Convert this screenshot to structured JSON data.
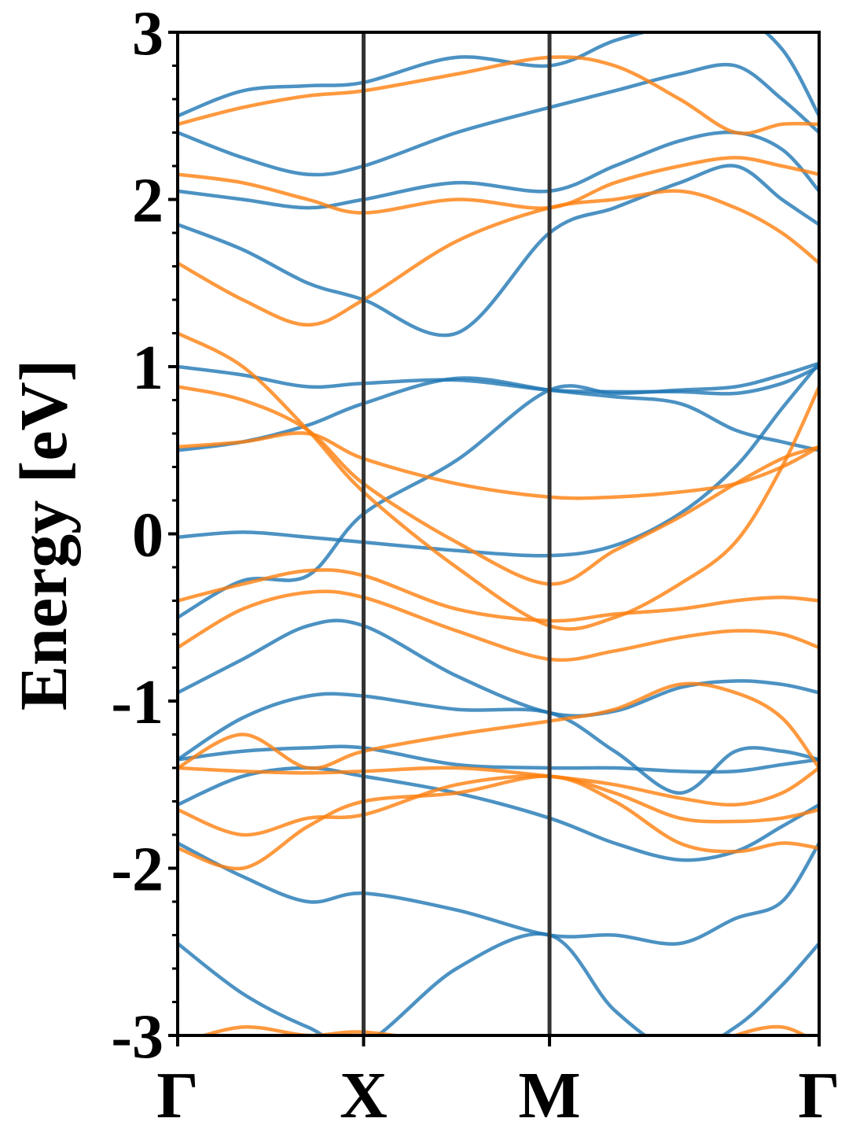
{
  "chart_data": {
    "type": "line",
    "title": "",
    "xlabel": "",
    "ylabel": "Energy [eV]",
    "ylim": [
      -3,
      3
    ],
    "xlim": [
      0,
      3.45
    ],
    "grid": false,
    "legend": "none",
    "x_ticks": [
      {
        "label": "Γ",
        "x": 0
      },
      {
        "label": "X",
        "x": 1
      },
      {
        "label": "M",
        "x": 2
      },
      {
        "label": "Γ",
        "x": 3.45
      }
    ],
    "y_ticks": [
      -3,
      -2,
      -1,
      0,
      1,
      2,
      3
    ],
    "y_tick_labels": [
      "-3",
      "-2",
      "-1",
      "0",
      "1",
      "2",
      "3"
    ],
    "colors": {
      "series_a": "#1f77b4",
      "series_b": "#ff7f0e",
      "axes": "#000000",
      "kpath_lines": "#333333"
    },
    "series": [
      {
        "color": "#1f77b4",
        "bands": [
          {
            "ids": [
              -0.02,
              0.01,
              -0.02,
              -0.05,
              -0.1,
              -0.13,
              -0.07,
              0.12,
              0.4,
              0.75,
              1.02
            ]
          },
          {
            "ids": [
              -0.5,
              -0.28,
              -0.25,
              0.12,
              0.44,
              0.86,
              0.84,
              0.86,
              0.88,
              0.95,
              1.02
            ]
          },
          {
            "ids": [
              0.5,
              0.55,
              0.65,
              0.78,
              0.93,
              0.86,
              0.82,
              0.78,
              0.62,
              0.55,
              0.5
            ]
          },
          {
            "ids": [
              1.0,
              0.95,
              0.88,
              0.9,
              0.92,
              0.86,
              0.85,
              0.85,
              0.84,
              0.9,
              1.0
            ]
          },
          {
            "ids": [
              -0.95,
              -0.75,
              -0.55,
              -0.55,
              -0.85,
              -1.07,
              -1.06,
              -0.92,
              -0.88,
              -0.9,
              -0.95
            ]
          },
          {
            "ids": [
              -1.35,
              -1.1,
              -0.97,
              -0.97,
              -1.05,
              -1.07,
              -1.3,
              -1.55,
              -1.3,
              -1.3,
              -1.35
            ]
          },
          {
            "ids": [
              -1.35,
              -1.3,
              -1.28,
              -1.28,
              -1.38,
              -1.4,
              -1.4,
              -1.42,
              -1.42,
              -1.38,
              -1.35
            ]
          },
          {
            "ids": [
              -1.62,
              -1.45,
              -1.4,
              -1.45,
              -1.55,
              -1.7,
              -1.85,
              -1.95,
              -1.9,
              -1.75,
              -1.62
            ]
          },
          {
            "ids": [
              -1.85,
              -2.05,
              -2.2,
              -2.15,
              -2.25,
              -2.4,
              -2.4,
              -2.45,
              -2.3,
              -2.2,
              -1.85
            ]
          },
          {
            "ids": [
              -2.45,
              -2.75,
              -2.95,
              -3.05,
              -2.6,
              -2.4,
              -2.85,
              -3.1,
              -2.95,
              -2.7,
              -2.45
            ]
          },
          {
            "ids": [
              1.85,
              1.7,
              1.5,
              1.4,
              1.2,
              1.8,
              1.95,
              2.1,
              2.2,
              2.0,
              1.85
            ]
          },
          {
            "ids": [
              2.05,
              2.0,
              1.95,
              2.0,
              2.1,
              2.05,
              2.2,
              2.35,
              2.4,
              2.3,
              2.05
            ]
          },
          {
            "ids": [
              2.4,
              2.25,
              2.15,
              2.2,
              2.4,
              2.55,
              2.65,
              2.75,
              2.8,
              2.6,
              2.4
            ]
          },
          {
            "ids": [
              2.5,
              2.65,
              2.68,
              2.7,
              2.85,
              2.8,
              2.95,
              3.05,
              3.1,
              2.9,
              2.5
            ]
          }
        ]
      },
      {
        "color": "#ff7f0e",
        "bands": [
          {
            "ids": [
              0.52,
              0.55,
              0.6,
              0.45,
              0.3,
              0.22,
              0.22,
              0.25,
              0.3,
              0.4,
              0.52
            ]
          },
          {
            "ids": [
              0.88,
              0.8,
              0.62,
              0.3,
              -0.05,
              -0.3,
              -0.1,
              0.1,
              0.3,
              0.45,
              0.52
            ]
          },
          {
            "ids": [
              1.2,
              1.0,
              0.62,
              0.25,
              -0.2,
              -0.55,
              -0.5,
              -0.3,
              -0.05,
              0.4,
              0.88
            ]
          },
          {
            "ids": [
              -0.4,
              -0.3,
              -0.22,
              -0.25,
              -0.45,
              -0.52,
              -0.48,
              -0.45,
              -0.4,
              -0.38,
              -0.4
            ]
          },
          {
            "ids": [
              -0.68,
              -0.45,
              -0.35,
              -0.38,
              -0.58,
              -0.75,
              -0.7,
              -0.62,
              -0.58,
              -0.6,
              -0.68
            ]
          },
          {
            "ids": [
              -1.4,
              -1.2,
              -1.4,
              -1.3,
              -1.2,
              -1.12,
              -1.05,
              -0.9,
              -0.95,
              -1.1,
              -1.4
            ]
          },
          {
            "ids": [
              -1.4,
              -1.42,
              -1.43,
              -1.42,
              -1.4,
              -1.45,
              -1.5,
              -1.58,
              -1.62,
              -1.55,
              -1.4
            ]
          },
          {
            "ids": [
              -1.65,
              -1.8,
              -1.7,
              -1.68,
              -1.5,
              -1.45,
              -1.55,
              -1.7,
              -1.72,
              -1.7,
              -1.65
            ]
          },
          {
            "ids": [
              -1.88,
              -2.0,
              -1.75,
              -1.6,
              -1.55,
              -1.45,
              -1.6,
              -1.85,
              -1.9,
              -1.85,
              -1.88
            ]
          },
          {
            "ids": [
              1.62,
              1.4,
              1.25,
              1.4,
              1.75,
              1.95,
              2.0,
              2.05,
              1.95,
              1.8,
              1.62
            ]
          },
          {
            "ids": [
              2.15,
              2.1,
              2.0,
              1.92,
              2.0,
              1.95,
              2.1,
              2.2,
              2.25,
              2.2,
              2.15
            ]
          },
          {
            "ids": [
              2.45,
              2.55,
              2.62,
              2.65,
              2.75,
              2.85,
              2.8,
              2.6,
              2.4,
              2.45,
              2.45
            ]
          },
          {
            "ids": [
              -3.05,
              -2.95,
              -3.0,
              -2.98,
              -3.05,
              -3.1,
              -3.2,
              -3.15,
              -3.0,
              -2.95,
              -3.05
            ]
          }
        ]
      }
    ]
  }
}
